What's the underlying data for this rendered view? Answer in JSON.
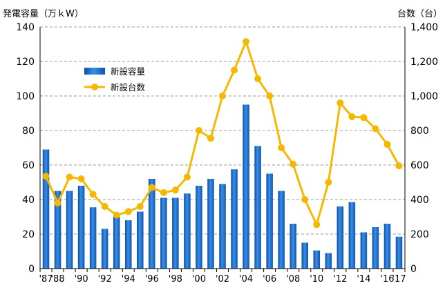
{
  "chart_data": {
    "type": "bar+line",
    "left_axis_label": "発電容量（万ｋW）",
    "right_axis_label": "台数（台）",
    "left_ylim": [
      0,
      140
    ],
    "left_ticks": [
      "0",
      "20",
      "40",
      "60",
      "80",
      "100",
      "120",
      "140"
    ],
    "right_ylim": [
      0,
      1400
    ],
    "right_ticks": [
      "0",
      "200",
      "400",
      "600",
      "800",
      "1,000",
      "1,200",
      "1,400"
    ],
    "grid": true,
    "legend_position": "upper-left",
    "x": [
      "1987",
      "1988",
      "1989",
      "1990",
      "1991",
      "1992",
      "1993",
      "1994",
      "1995",
      "1996",
      "1997",
      "1998",
      "1999",
      "2000",
      "2001",
      "2002",
      "2003",
      "2004",
      "2005",
      "2006",
      "2007",
      "2008",
      "2009",
      "2010",
      "2011",
      "2012",
      "2013",
      "2014",
      "2015",
      "2016",
      "2017"
    ],
    "x_tick_labels": [
      {
        "index": 0,
        "text": "'87"
      },
      {
        "index": 1,
        "text": "'88"
      },
      {
        "index": 3,
        "text": "'90"
      },
      {
        "index": 5,
        "text": "'92"
      },
      {
        "index": 7,
        "text": "'94"
      },
      {
        "index": 9,
        "text": "'96"
      },
      {
        "index": 11,
        "text": "'98"
      },
      {
        "index": 13,
        "text": "'00"
      },
      {
        "index": 15,
        "text": "'02"
      },
      {
        "index": 17,
        "text": "'04"
      },
      {
        "index": 19,
        "text": "'06"
      },
      {
        "index": 21,
        "text": "'08"
      },
      {
        "index": 23,
        "text": "'10"
      },
      {
        "index": 25,
        "text": "'12"
      },
      {
        "index": 27,
        "text": "'14"
      },
      {
        "index": 29,
        "text": "'16"
      },
      {
        "index": 30,
        "text": "'17"
      }
    ],
    "series": [
      {
        "name": "新設容量",
        "type": "bar",
        "axis": "left",
        "color": "#1565c0",
        "values": [
          69,
          45,
          45,
          48,
          35.5,
          23,
          31,
          28,
          33,
          52,
          41,
          41,
          43.5,
          48,
          52,
          49,
          57.5,
          95,
          71,
          55,
          45,
          26,
          15,
          10.5,
          9,
          36,
          38.5,
          21,
          24,
          26,
          18.5
        ]
      },
      {
        "name": "新設台数",
        "type": "line",
        "axis": "right",
        "color": "#f5b800",
        "values": [
          535,
          380,
          530,
          520,
          430,
          360,
          310,
          330,
          360,
          470,
          440,
          455,
          530,
          800,
          755,
          1000,
          1150,
          1315,
          1100,
          1000,
          700,
          605,
          400,
          255,
          500,
          960,
          880,
          875,
          810,
          720,
          595
        ]
      }
    ]
  }
}
